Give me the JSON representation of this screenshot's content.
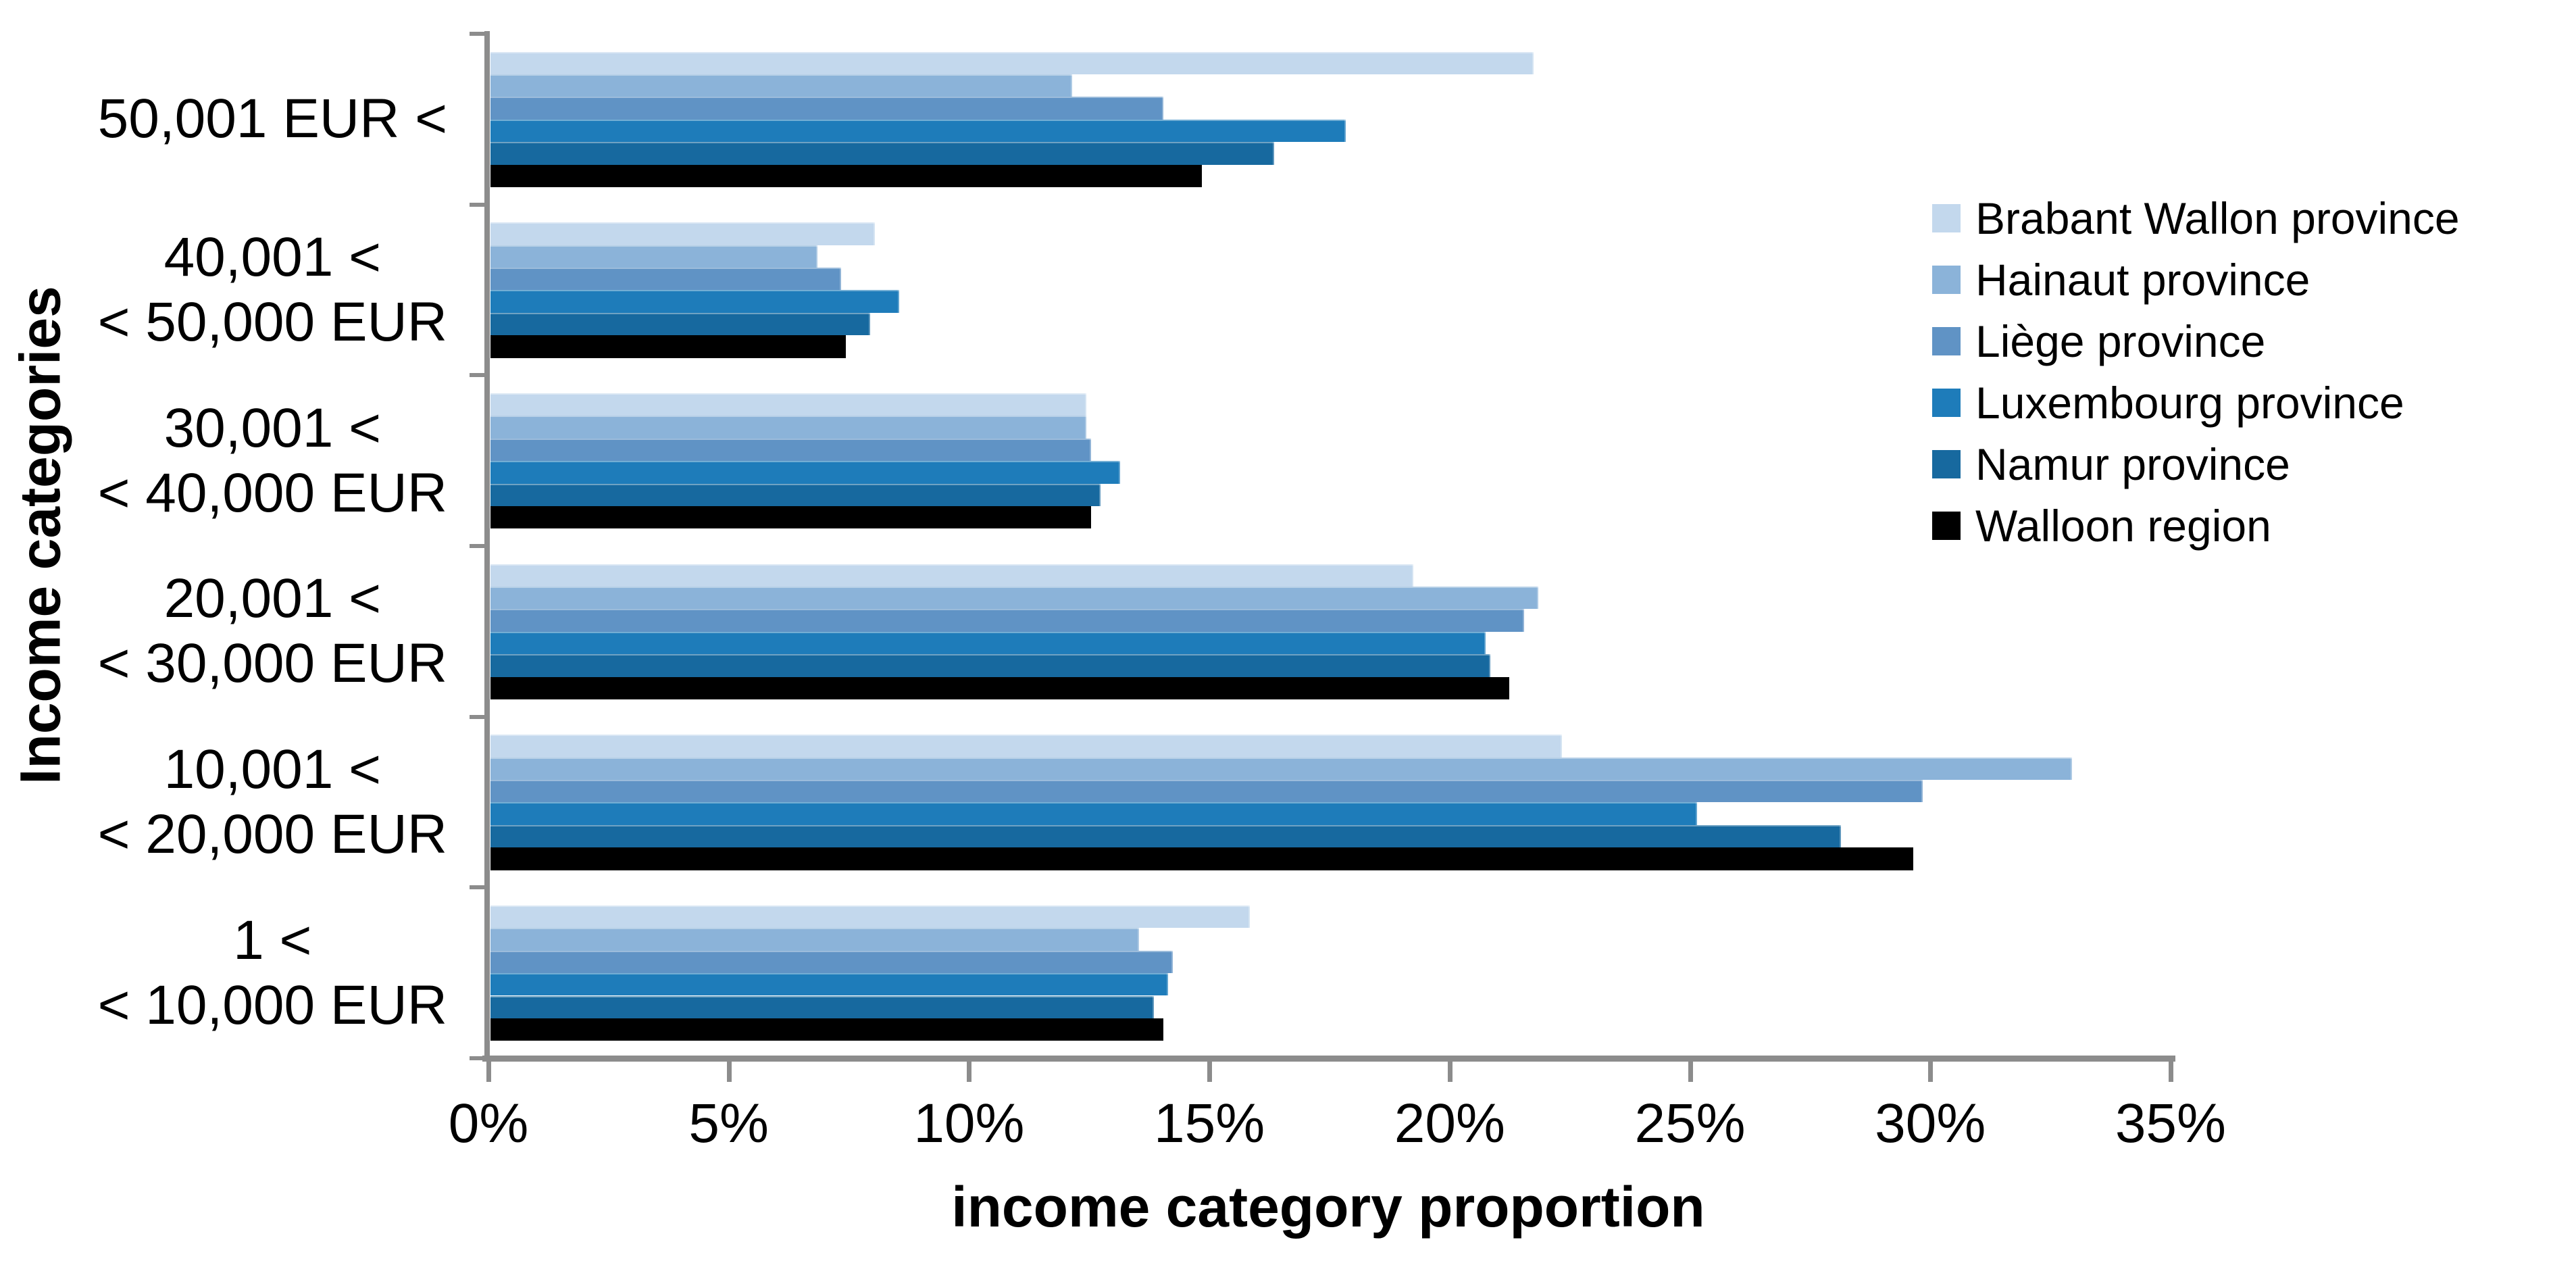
{
  "chart_data": {
    "type": "bar",
    "orientation": "horizontal",
    "title": "",
    "xlabel": "income category proportion",
    "ylabel": "Income categories",
    "xlim": [
      0,
      35
    ],
    "grid": false,
    "legend_position": "right",
    "x_ticks": [
      {
        "value": 0,
        "label": "0%"
      },
      {
        "value": 5,
        "label": "5%"
      },
      {
        "value": 10,
        "label": "10%"
      },
      {
        "value": 15,
        "label": "15%"
      },
      {
        "value": 20,
        "label": "20%"
      },
      {
        "value": 25,
        "label": "25%"
      },
      {
        "value": 30,
        "label": "30%"
      },
      {
        "value": 35,
        "label": "35%"
      }
    ],
    "categories": [
      {
        "label": "50,001 EUR <",
        "lines": [
          "50,001 EUR <"
        ]
      },
      {
        "label": "40,001 < < 50,000 EUR",
        "lines": [
          "40,001 <",
          "< 50,000 EUR"
        ]
      },
      {
        "label": "30,001 < < 40,000 EUR",
        "lines": [
          "30,001 <",
          "< 40,000 EUR"
        ]
      },
      {
        "label": "20,001 < < 30,000 EUR",
        "lines": [
          "20,001 <",
          "< 30,000 EUR"
        ]
      },
      {
        "label": "10,001 < < 20,000 EUR",
        "lines": [
          "10,001 <",
          "< 20,000 EUR"
        ]
      },
      {
        "label": "1 < < 10,000 EUR",
        "lines": [
          "1 <",
          "< 10,000 EUR"
        ]
      }
    ],
    "series": [
      {
        "name": "Brabant Wallon province",
        "color": "#c3d8ed",
        "values": [
          21.7,
          8.0,
          12.4,
          19.2,
          22.3,
          15.8
        ]
      },
      {
        "name": "Hainaut province",
        "color": "#8bb3d9",
        "values": [
          12.1,
          6.8,
          12.4,
          21.8,
          32.9,
          13.5
        ]
      },
      {
        "name": "Liège province",
        "color": "#6093c5",
        "values": [
          14.0,
          7.3,
          12.5,
          21.5,
          29.8,
          14.2
        ]
      },
      {
        "name": "Luxembourg province",
        "color": "#1e7cba",
        "values": [
          17.8,
          8.5,
          13.1,
          20.7,
          25.1,
          14.1
        ]
      },
      {
        "name": "Namur province",
        "color": "#17699f",
        "values": [
          16.3,
          7.9,
          12.7,
          20.8,
          28.1,
          13.8
        ]
      },
      {
        "name": "Walloon region",
        "color": "#000000",
        "values": [
          14.8,
          7.4,
          12.5,
          21.2,
          29.6,
          14.0
        ]
      }
    ],
    "axis_color": "#8c8c8c",
    "text_color": "#000000"
  }
}
